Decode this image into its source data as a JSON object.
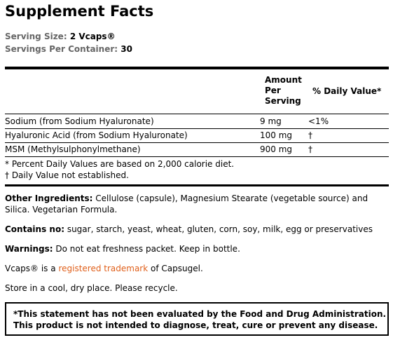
{
  "header": {
    "title": "Supplement Facts",
    "serving_size": {
      "label": "Serving Size:",
      "value": "2 Vcaps®"
    },
    "servings_per_container": {
      "label": "Servings Per Container:",
      "value": "30"
    }
  },
  "table": {
    "columns": [
      "Amount Per Serving",
      "% Daily Value*"
    ],
    "rows": [
      [
        "Sodium (from Sodium Hyaluronate)",
        "9 mg",
        "<1%"
      ],
      [
        "Hyaluronic Acid (from Sodium Hyaluronate)",
        "100 mg",
        "†"
      ],
      [
        "MSM (Methylsulphonylmethane)",
        "900 mg",
        "†"
      ]
    ],
    "footnotes": [
      "* Percent Daily Values are based on 2,000 calorie diet.",
      "† Daily Value not established."
    ]
  },
  "sections": [
    {
      "label": "Other Ingredients:",
      "text": "Cellulose (capsule), Magnesium Stearate (vegetable source) and Silica. Vegetarian Formula."
    },
    {
      "label": "Contains no:",
      "text": "sugar, starch, yeast, wheat, gluten, corn, soy, milk, egg or preservatives"
    },
    {
      "label": "Warnings:",
      "text": "Do not eat freshness packet. Keep in bottle."
    }
  ],
  "trademark": {
    "before": "Vcaps® is a",
    "link": "registered trademark",
    "after": "of Capsugel."
  },
  "storage": "Store in a cool, dry place. Please recycle.",
  "disclaimer": [
    "*This statement has not been evaluated by the Food and Drug Administration.",
    "This product is not intended to diagnose, treat, cure or prevent any disease."
  ]
}
